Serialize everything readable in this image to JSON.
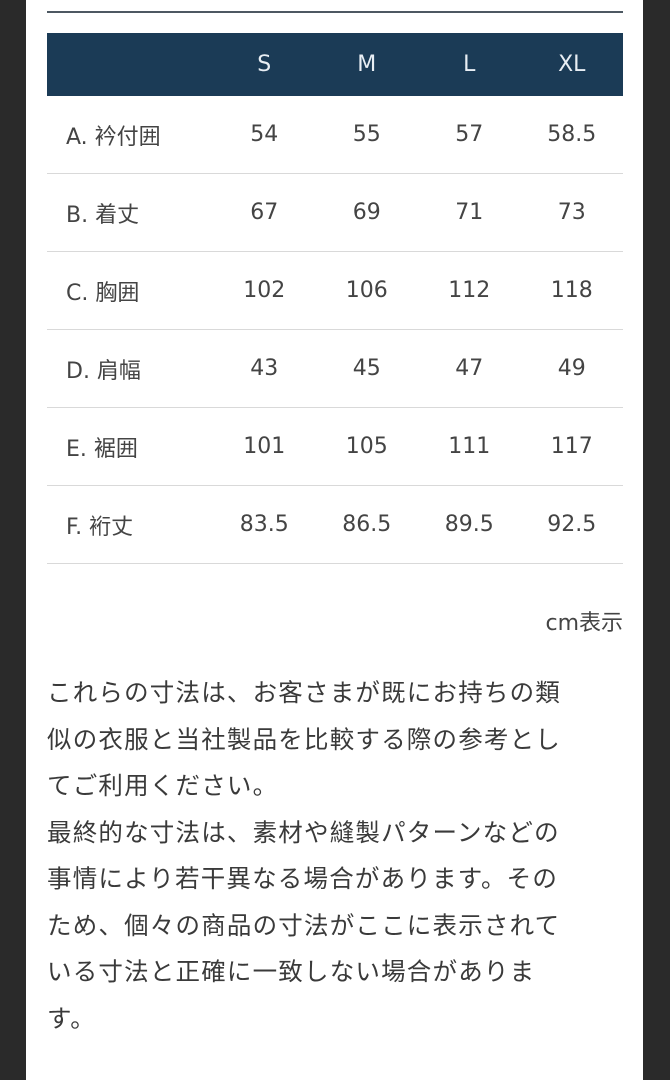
{
  "table": {
    "headers": [
      "",
      "S",
      "M",
      "L",
      "XL"
    ],
    "rows": [
      {
        "label": "A. 衿付囲",
        "values": [
          "54",
          "55",
          "57",
          "58.5"
        ]
      },
      {
        "label": "B. 着丈",
        "values": [
          "67",
          "69",
          "71",
          "73"
        ]
      },
      {
        "label": "C. 胸囲",
        "values": [
          "102",
          "106",
          "112",
          "118"
        ]
      },
      {
        "label": "D. 肩幅",
        "values": [
          "43",
          "45",
          "47",
          "49"
        ]
      },
      {
        "label": "E. 裾囲",
        "values": [
          "101",
          "105",
          "111",
          "117"
        ]
      },
      {
        "label": "F. 裄丈",
        "values": [
          "83.5",
          "86.5",
          "89.5",
          "92.5"
        ]
      }
    ]
  },
  "unit_label": "cm表示",
  "note_lines": [
    "これらの寸法は、お客さまが既にお持ちの類",
    "似の衣服と当社製品を比較する際の参考とし",
    "てご利用ください。",
    "最終的な寸法は、素材や縫製パターンなどの",
    "事情により若干異なる場合があります。その",
    "ため、個々の商品の寸法がここに表示されて",
    "いる寸法と正確に一致しない場合がありま",
    "す。"
  ],
  "colors": {
    "header_bg": "#1b3b56",
    "page_bg": "#2a2a2a"
  }
}
